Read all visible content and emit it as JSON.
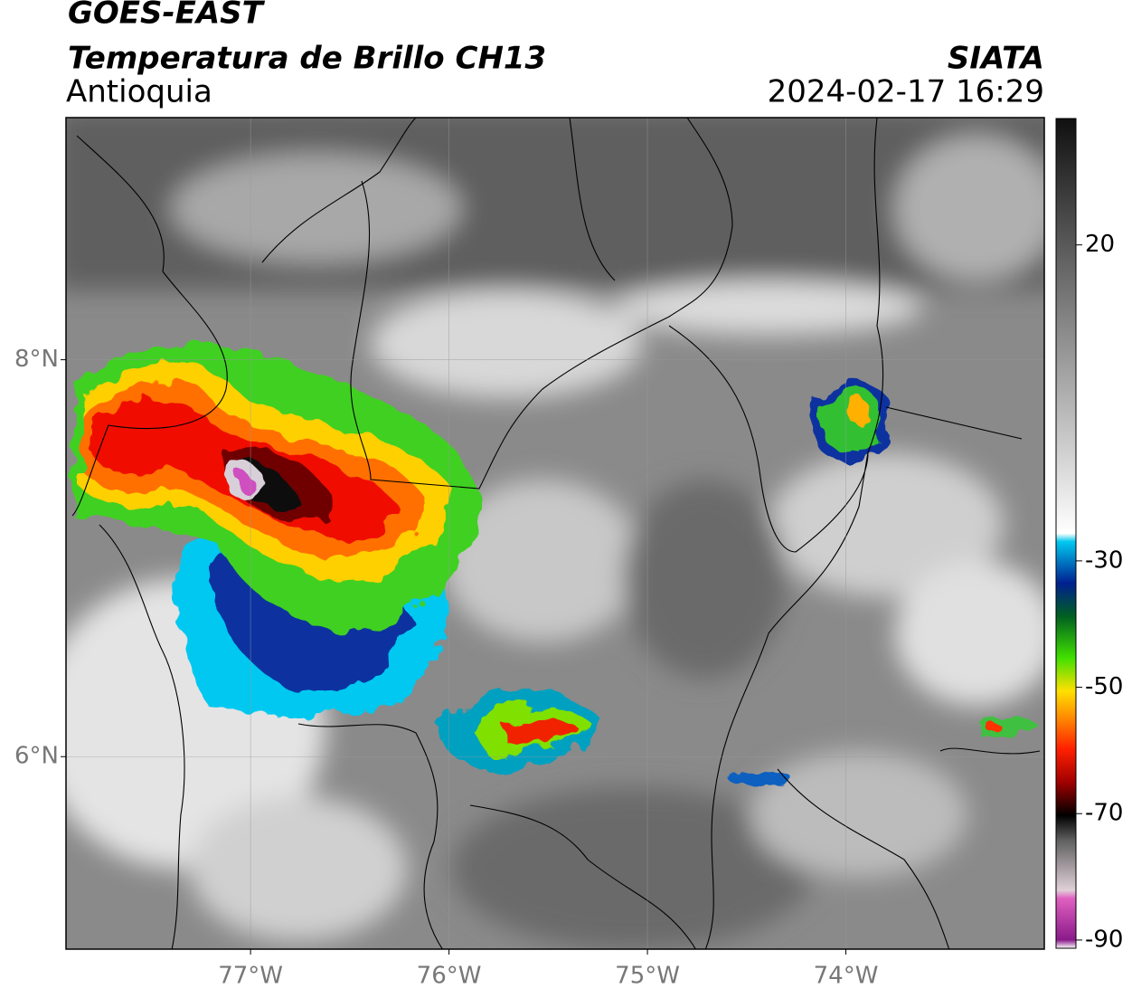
{
  "header": {
    "title": "GOES-EAST",
    "subtitle": "Temperatura de Brillo CH13",
    "region": "Antioquia",
    "source": "SIATA",
    "datetime": "2024-02-17 16:29"
  },
  "map": {
    "xlim": [
      -77.93,
      -73.0
    ],
    "ylim": [
      5.03,
      9.22
    ],
    "xticks": [
      {
        "value": -77,
        "label": "77°W"
      },
      {
        "value": -76,
        "label": "76°W"
      },
      {
        "value": -75,
        "label": "75°W"
      },
      {
        "value": -74,
        "label": "74°W"
      }
    ],
    "yticks": [
      {
        "value": 8,
        "label": "8°N"
      },
      {
        "value": 6,
        "label": "6°N"
      }
    ],
    "grid": true
  },
  "colorbar": {
    "lim": [
      -91.3,
      40
    ],
    "ticks": [
      20,
      -30,
      -50,
      -70,
      -90
    ]
  }
}
